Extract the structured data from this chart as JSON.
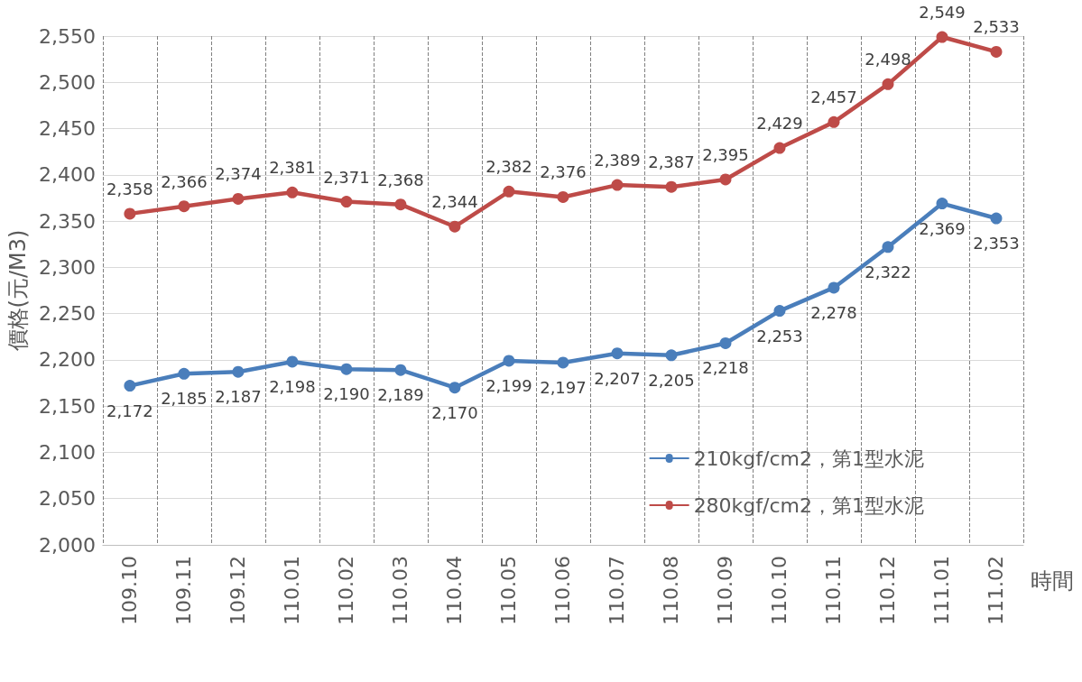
{
  "chart_data": {
    "type": "line",
    "xlabel": "時間",
    "ylabel": "價格(元/M3)",
    "categories": [
      "109.10",
      "109.11",
      "109.12",
      "110.01",
      "110.02",
      "110.03",
      "110.04",
      "110.05",
      "110.06",
      "110.07",
      "110.08",
      "110.09",
      "110.10",
      "110.11",
      "110.12",
      "111.01",
      "111.02"
    ],
    "series": [
      {
        "name": "210kgf/cm2，第1型水泥",
        "color": "#4a7ebb",
        "values": [
          2172,
          2185,
          2187,
          2198,
          2190,
          2189,
          2170,
          2199,
          2197,
          2207,
          2205,
          2218,
          2253,
          2278,
          2322,
          2369,
          2353
        ],
        "value_labels": [
          "2,172",
          "2,185",
          "2,187",
          "2,198",
          "2,190",
          "2,189",
          "2,170",
          "2,199",
          "2,197",
          "2,207",
          "2,205",
          "2,218",
          "2,253",
          "2,278",
          "2,322",
          "2,369",
          "2,353"
        ]
      },
      {
        "name": "280kgf/cm2，第1型水泥",
        "color": "#be4b48",
        "values": [
          2358,
          2366,
          2374,
          2381,
          2371,
          2368,
          2344,
          2382,
          2376,
          2389,
          2387,
          2395,
          2429,
          2457,
          2498,
          2549,
          2533
        ],
        "value_labels": [
          "2,358",
          "2,366",
          "2,374",
          "2,381",
          "2,371",
          "2,368",
          "2,344",
          "2,382",
          "2,376",
          "2,389",
          "2,387",
          "2,395",
          "2,429",
          "2,457",
          "2,498",
          "2,549",
          "2,533"
        ]
      }
    ],
    "ylim": [
      2000,
      2550
    ],
    "yticks": [
      {
        "value": 2000,
        "label": "2,000"
      },
      {
        "value": 2050,
        "label": "2,050"
      },
      {
        "value": 2100,
        "label": "2,100"
      },
      {
        "value": 2150,
        "label": "2,150"
      },
      {
        "value": 2200,
        "label": "2,200"
      },
      {
        "value": 2250,
        "label": "2,250"
      },
      {
        "value": 2300,
        "label": "2,300"
      },
      {
        "value": 2350,
        "label": "2,350"
      },
      {
        "value": 2400,
        "label": "2,400"
      },
      {
        "value": 2450,
        "label": "2,450"
      },
      {
        "value": 2500,
        "label": "2,500"
      },
      {
        "value": 2550,
        "label": "2,550"
      }
    ],
    "grid": true,
    "legend": "bottom right",
    "marker": "circle",
    "line_style": "solid"
  }
}
